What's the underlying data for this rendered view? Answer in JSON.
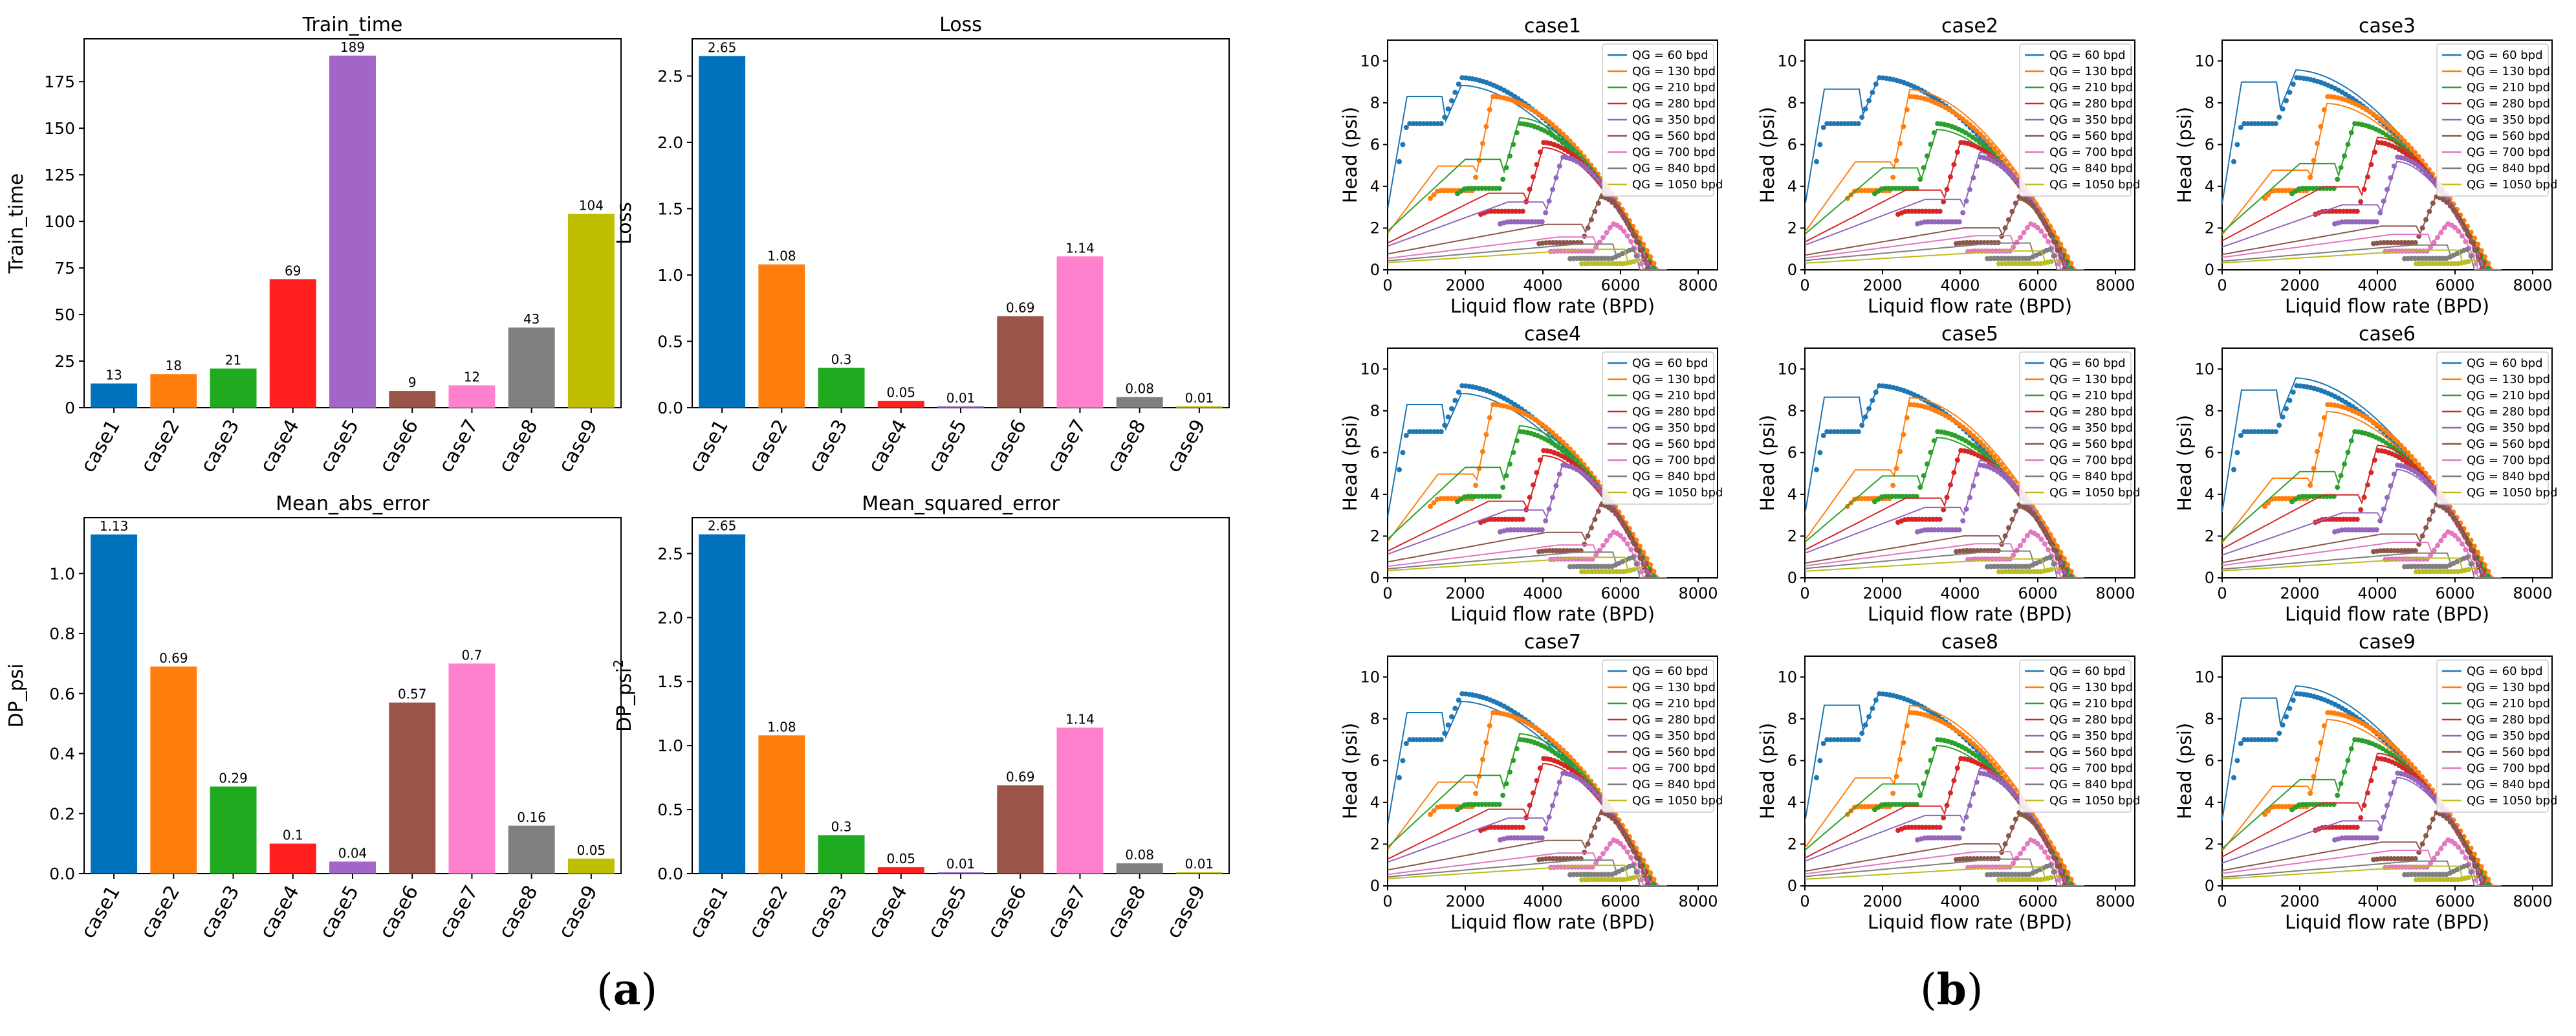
{
  "captions": {
    "a": "a",
    "b": "b"
  },
  "colors": [
    "#1f77b4",
    "#ff7f0e",
    "#2ca02c",
    "#d62728",
    "#9467bd",
    "#8c564b",
    "#e377c2",
    "#7f7f7f",
    "#bcbd22"
  ],
  "bar_colors": [
    "#0072bd",
    "#ff7f0e",
    "#1faa1f",
    "#ff1f1f",
    "#a365c8",
    "#9a5548",
    "#ff80cc",
    "#808080",
    "#bfbf00"
  ],
  "chart_data": [
    {
      "type": "bar",
      "title": "Train_time",
      "ylabel": "Train_time",
      "categories": [
        "case1",
        "case2",
        "case3",
        "case4",
        "case5",
        "case6",
        "case7",
        "case8",
        "case9"
      ],
      "values": [
        13,
        18,
        21,
        69,
        189,
        9,
        12,
        43,
        104
      ],
      "value_labels": [
        "13",
        "18",
        "21",
        "69",
        "189",
        "9",
        "12",
        "43",
        "104"
      ],
      "yticks": [
        0,
        25,
        50,
        75,
        100,
        125,
        150,
        175
      ],
      "ytick_labels": [
        "0",
        "25",
        "50",
        "75",
        "100",
        "125",
        "150",
        "175"
      ],
      "ylim": [
        0,
        198
      ]
    },
    {
      "type": "bar",
      "title": "Loss",
      "ylabel": "Loss",
      "categories": [
        "case1",
        "case2",
        "case3",
        "case4",
        "case5",
        "case6",
        "case7",
        "case8",
        "case9"
      ],
      "values": [
        2.65,
        1.08,
        0.3,
        0.05,
        0.01,
        0.69,
        1.14,
        0.08,
        0.01
      ],
      "value_labels": [
        "2.65",
        "1.08",
        "0.3",
        "0.05",
        "0.01",
        "0.69",
        "1.14",
        "0.08",
        "0.01"
      ],
      "yticks": [
        0,
        0.5,
        1.0,
        1.5,
        2.0,
        2.5
      ],
      "ytick_labels": [
        "0.0",
        "0.5",
        "1.0",
        "1.5",
        "2.0",
        "2.5"
      ],
      "ylim": [
        0,
        2.78
      ]
    },
    {
      "type": "bar",
      "title": "Mean_abs_error",
      "ylabel": "DP_psi",
      "categories": [
        "case1",
        "case2",
        "case3",
        "case4",
        "case5",
        "case6",
        "case7",
        "case8",
        "case9"
      ],
      "values": [
        1.13,
        0.69,
        0.29,
        0.1,
        0.04,
        0.57,
        0.7,
        0.16,
        0.05
      ],
      "value_labels": [
        "1.13",
        "0.69",
        "0.29",
        "0.1",
        "0.04",
        "0.57",
        "0.7",
        "0.16",
        "0.05"
      ],
      "yticks": [
        0,
        0.2,
        0.4,
        0.6,
        0.8,
        1.0
      ],
      "ytick_labels": [
        "0.0",
        "0.2",
        "0.4",
        "0.6",
        "0.8",
        "1.0"
      ],
      "ylim": [
        0,
        1.186
      ]
    },
    {
      "type": "bar",
      "title": "Mean_squared_error",
      "ylabel": "DP_psi",
      "ylabel_sup": "2",
      "categories": [
        "case1",
        "case2",
        "case3",
        "case4",
        "case5",
        "case6",
        "case7",
        "case8",
        "case9"
      ],
      "values": [
        2.65,
        1.08,
        0.3,
        0.05,
        0.01,
        0.69,
        1.14,
        0.08,
        0.01
      ],
      "value_labels": [
        "2.65",
        "1.08",
        "0.3",
        "0.05",
        "0.01",
        "0.69",
        "1.14",
        "0.08",
        "0.01"
      ],
      "yticks": [
        0,
        0.5,
        1.0,
        1.5,
        2.0,
        2.5
      ],
      "ytick_labels": [
        "0.0",
        "0.5",
        "1.0",
        "1.5",
        "2.0",
        "2.5"
      ],
      "ylim": [
        0,
        2.78
      ]
    },
    {
      "type": "scatter",
      "panel_grid": "3x3",
      "titles": [
        "case1",
        "case2",
        "case3",
        "case4",
        "case5",
        "case6",
        "case7",
        "case8",
        "case9"
      ],
      "xlabel": "Liquid flow rate (BPD)",
      "ylabel": "Head (psi)",
      "xlim": [
        0,
        8500
      ],
      "ylim": [
        0,
        11
      ],
      "xticks": [
        0,
        2000,
        4000,
        6000,
        8000
      ],
      "xtick_labels": [
        "0",
        "2000",
        "4000",
        "6000",
        "8000"
      ],
      "yticks": [
        0,
        2,
        4,
        6,
        8,
        10
      ],
      "ytick_labels": [
        "0",
        "2",
        "4",
        "6",
        "8",
        "10"
      ],
      "legend_position": "top-right",
      "legend": [
        "QG = 60 bpd",
        "QG = 130 bpd",
        "QG = 210 bpd",
        "QG = 280 bpd",
        "QG = 350 bpd",
        "QG = 560 bpd",
        "QG = 700 bpd",
        "QG = 840 bpd",
        "QG = 1050 bpd"
      ],
      "series_params": [
        {
          "name": "QG = 60 bpd",
          "onset": 1400,
          "plateau": 7.0,
          "peak": 9.2,
          "end": 6900
        },
        {
          "name": "QG = 130 bpd",
          "onset": 2200,
          "plateau": 3.8,
          "peak": 8.3,
          "end": 6950
        },
        {
          "name": "QG = 210 bpd",
          "onset": 2900,
          "plateau": 3.9,
          "peak": 7.0,
          "end": 6850
        },
        {
          "name": "QG = 280 bpd",
          "onset": 3500,
          "plateau": 2.8,
          "peak": 6.1,
          "end": 6800
        },
        {
          "name": "QG = 350 bpd",
          "onset": 4000,
          "plateau": 2.3,
          "peak": 5.4,
          "end": 6750
        },
        {
          "name": "QG = 560 bpd",
          "onset": 5000,
          "plateau": 1.3,
          "peak": 3.5,
          "end": 6700
        },
        {
          "name": "QG = 700 bpd",
          "onset": 5300,
          "plateau": 0.9,
          "peak": 2.2,
          "end": 6600
        },
        {
          "name": "QG = 840 bpd",
          "onset": 5800,
          "plateau": 0.55,
          "peak": 1.0,
          "end": 6500
        },
        {
          "name": "QG = 1050 bpd",
          "onset": 6100,
          "plateau": 0.3,
          "peak": 0.5,
          "end": 6400
        }
      ]
    }
  ]
}
